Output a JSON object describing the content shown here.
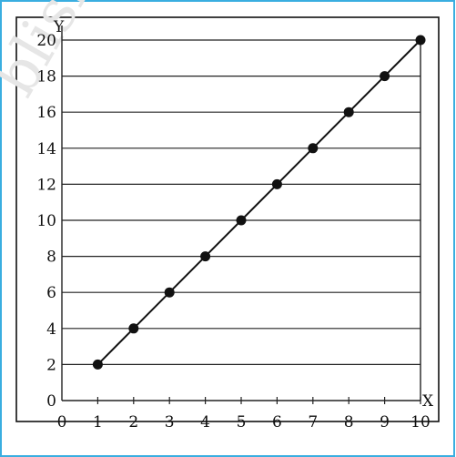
{
  "watermark": "blished",
  "chart_data": {
    "type": "line",
    "title": "",
    "xlabel": "X",
    "ylabel": "Y",
    "xlim": [
      0,
      10
    ],
    "ylim": [
      0,
      20
    ],
    "x_ticks": [
      0,
      1,
      2,
      3,
      4,
      5,
      6,
      7,
      8,
      9,
      10
    ],
    "y_ticks": [
      0,
      2,
      4,
      6,
      8,
      10,
      12,
      14,
      16,
      18,
      20
    ],
    "grid": "horizontal",
    "legend": "none",
    "series": [
      {
        "x": [
          1,
          2,
          3,
          4,
          5,
          6,
          7,
          8,
          9,
          10
        ],
        "y": [
          2,
          4,
          6,
          8,
          10,
          12,
          14,
          16,
          18,
          20
        ]
      }
    ],
    "colors": {
      "frame": "#3aaee0",
      "line": "#111111",
      "grid": "#222222",
      "marker": "#111111"
    }
  }
}
